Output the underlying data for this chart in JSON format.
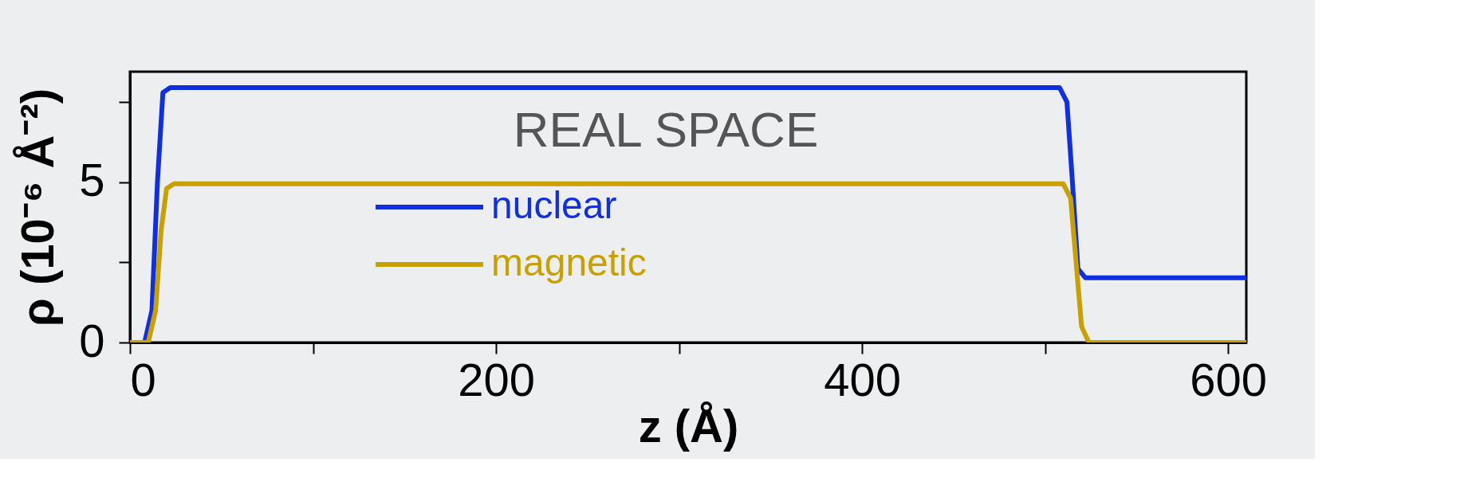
{
  "chart_data": {
    "type": "line",
    "xlabel": "z (Å)",
    "ylabel": "ρ (10⁻⁶ Å⁻²)",
    "annotations": [
      "REAL SPACE"
    ],
    "xlim": [
      0,
      610
    ],
    "ylim": [
      0,
      8.45
    ],
    "xticks": [
      0,
      {
        "value": 100,
        "label": null
      },
      200,
      {
        "value": 300,
        "label": null
      },
      400,
      {
        "value": 500,
        "label": null
      },
      600
    ],
    "yticks": [
      0,
      {
        "value": 2.5,
        "label": null
      },
      5,
      {
        "value": 7.5,
        "label": null
      }
    ],
    "grid": false,
    "legend": "bottom",
    "line_style": "solid",
    "marker": "none",
    "series": [
      {
        "name": "nuclear",
        "color": "#1030e0",
        "x": [
          0,
          8,
          12,
          15,
          18,
          22,
          508,
          512,
          515,
          518,
          522,
          610
        ],
        "values": [
          0,
          0,
          1,
          5,
          7.8,
          7.95,
          7.95,
          7.5,
          5,
          2.3,
          2.02,
          2.02
        ]
      },
      {
        "name": "magnetic",
        "color": "#c8a000",
        "x": [
          0,
          10,
          14,
          17,
          20,
          24,
          510,
          514,
          517,
          520,
          524,
          610
        ],
        "values": [
          0,
          0,
          1,
          3.5,
          4.8,
          4.95,
          4.95,
          4.5,
          2.5,
          0.5,
          0,
          0
        ]
      }
    ]
  }
}
